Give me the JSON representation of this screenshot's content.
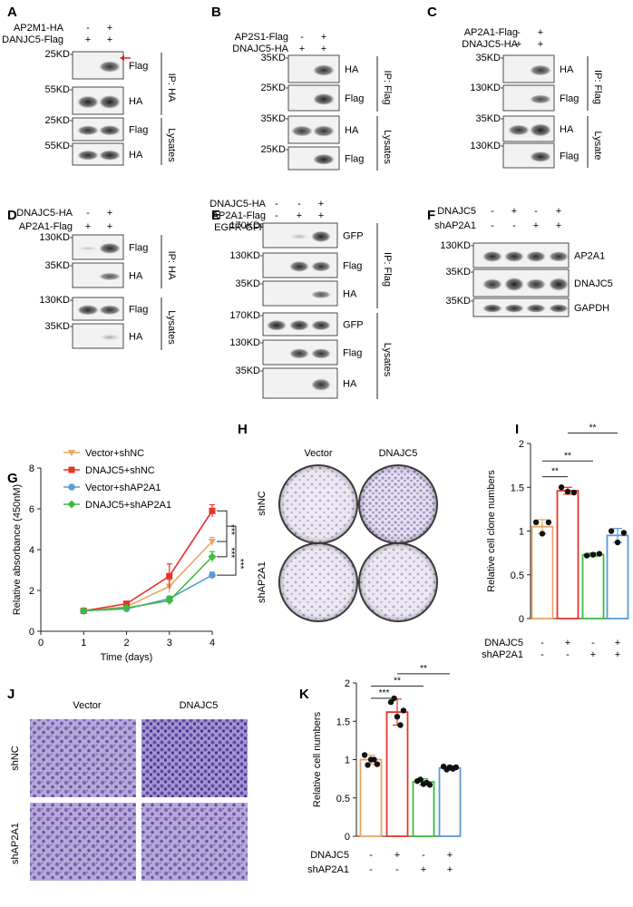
{
  "panels": {
    "A": {
      "label": "A",
      "conditions": [
        {
          "name": "AP2M1-HA",
          "vals": [
            "-",
            "+"
          ]
        },
        {
          "name": "DANJC5-Flag",
          "vals": [
            "+",
            "+"
          ]
        }
      ],
      "blots": [
        {
          "mw": "25KD",
          "protein": "Flag"
        },
        {
          "mw": "55KD",
          "protein": "HA"
        },
        {
          "mw": "25KD",
          "protein": "Flag"
        },
        {
          "mw": "55KD",
          "protein": "HA"
        }
      ],
      "groups": [
        "IP: HA",
        "Lysates"
      ]
    },
    "B": {
      "label": "B",
      "conditions": [
        {
          "name": "AP2S1-Flag",
          "vals": [
            "-",
            "+"
          ]
        },
        {
          "name": "DNAJC5-HA",
          "vals": [
            "+",
            "+"
          ]
        }
      ],
      "blots": [
        {
          "mw": "35KD",
          "protein": "HA"
        },
        {
          "mw": "25KD",
          "protein": "Flag"
        },
        {
          "mw": "35KD",
          "protein": "HA"
        },
        {
          "mw": "25KD",
          "protein": "Flag"
        }
      ],
      "groups": [
        "IP: Flag",
        "Lysates"
      ]
    },
    "C": {
      "label": "C",
      "conditions": [
        {
          "name": "AP2A1-Flag",
          "vals": [
            "-",
            "+"
          ]
        },
        {
          "name": "DNAJC5-HA",
          "vals": [
            "+",
            "+"
          ]
        }
      ],
      "blots": [
        {
          "mw": "35KD",
          "protein": "HA"
        },
        {
          "mw": "130KD",
          "protein": "Flag"
        },
        {
          "mw": "35KD",
          "protein": "HA"
        },
        {
          "mw": "130KD",
          "protein": "Flag"
        }
      ],
      "groups": [
        "IP: Flag",
        "Lysate"
      ]
    },
    "D": {
      "label": "D",
      "conditions": [
        {
          "name": "DNAJC5-HA",
          "vals": [
            "-",
            "+"
          ]
        },
        {
          "name": "AP2A1-Flag",
          "vals": [
            "+",
            "+"
          ]
        }
      ],
      "blots": [
        {
          "mw": "130KD",
          "protein": "Flag"
        },
        {
          "mw": "35KD",
          "protein": "HA"
        },
        {
          "mw": "130KD",
          "protein": "Flag"
        },
        {
          "mw": "35KD",
          "protein": "HA"
        }
      ],
      "groups": [
        "IP: HA",
        "Lysates"
      ]
    },
    "E": {
      "label": "E",
      "conditions": [
        {
          "name": "DNAJC5-HA",
          "vals": [
            "-",
            "-",
            "+"
          ]
        },
        {
          "name": "AP2A1-Flag",
          "vals": [
            "-",
            "+",
            "+"
          ]
        },
        {
          "name": "EGFR-GFP",
          "vals": [
            "+",
            "+",
            "+"
          ]
        }
      ],
      "blots": [
        {
          "mw": "170KD",
          "protein": "GFP"
        },
        {
          "mw": "130KD",
          "protein": "Flag"
        },
        {
          "mw": "35KD",
          "protein": "HA"
        },
        {
          "mw": "170KD",
          "protein": "GFP"
        },
        {
          "mw": "130KD",
          "protein": "Flag"
        },
        {
          "mw": "35KD",
          "protein": "HA"
        }
      ],
      "groups": [
        "IP: Flag",
        "Lysates"
      ]
    },
    "F": {
      "label": "F",
      "conditions": [
        {
          "name": "DNAJC5",
          "vals": [
            "-",
            "+",
            "-",
            "+"
          ]
        },
        {
          "name": "shAP2A1",
          "vals": [
            "-",
            "-",
            "+",
            "+"
          ]
        }
      ],
      "blots": [
        {
          "mw": "130KD",
          "protein": "AP2A1"
        },
        {
          "mw": "35KD",
          "protein": "DNAJC5"
        },
        {
          "mw": "35KD",
          "protein": "GAPDH"
        }
      ]
    },
    "H": {
      "label": "H",
      "cols": [
        "Vector",
        "DNAJC5"
      ],
      "rows": [
        "shNC",
        "shAP2A1"
      ]
    },
    "J": {
      "label": "J",
      "cols": [
        "Vector",
        "DNAJC5"
      ],
      "rows": [
        "shNC",
        "shAP2A1"
      ]
    }
  },
  "colors": {
    "vector_shNC": "#e8a565",
    "dnajc5_shNC": "#e8342a",
    "vector_shAP2A1": "#5b9bd5",
    "dnajc5_shAP2A1": "#3dbb3d",
    "crystal_violet": "#7a5bb0"
  },
  "chart_data": [
    {
      "panel": "G",
      "type": "line",
      "xlabel": "Time (days)",
      "ylabel": "Relative absorbance (450nM)",
      "xlim": [
        0,
        4
      ],
      "ylim": [
        0,
        8
      ],
      "xticks": [
        "0",
        "1",
        "2",
        "3",
        "4"
      ],
      "yticks": [
        "0",
        "2",
        "4",
        "6",
        "8"
      ],
      "x": [
        1,
        2,
        3,
        4
      ],
      "legend_position": "top-left",
      "series": [
        {
          "name": "Vector+shNC",
          "values": [
            1.0,
            1.2,
            2.2,
            4.4
          ],
          "err": [
            0.05,
            0.1,
            0.3,
            0.2
          ]
        },
        {
          "name": "DNAJC5+shNC",
          "values": [
            1.0,
            1.35,
            2.7,
            5.9
          ],
          "err": [
            0.05,
            0.1,
            0.6,
            0.3
          ]
        },
        {
          "name": "Vector+shAP2A1",
          "values": [
            1.0,
            1.1,
            1.6,
            2.75
          ],
          "err": [
            0.05,
            0.08,
            0.12,
            0.15
          ]
        },
        {
          "name": "DNAJC5+shAP2A1",
          "values": [
            1.0,
            1.15,
            1.5,
            3.65
          ],
          "err": [
            0.05,
            0.08,
            0.2,
            0.25
          ]
        }
      ],
      "significance": [
        "***",
        "***",
        "***"
      ]
    },
    {
      "panel": "I",
      "type": "bar",
      "ylabel": "Relative cell clone numbers",
      "ylim": [
        0,
        2
      ],
      "yticks": [
        "0",
        "0.5",
        "1",
        "1.5",
        "2"
      ],
      "conditions": [
        {
          "name": "DNAJC5",
          "vals": [
            "-",
            "+",
            "-",
            "+"
          ]
        },
        {
          "name": "shAP2A1",
          "vals": [
            "-",
            "-",
            "+",
            "+"
          ]
        }
      ],
      "values": [
        1.05,
        1.46,
        0.73,
        0.95
      ],
      "err": [
        0.08,
        0.04,
        0.02,
        0.08
      ],
      "points": [
        [
          1.1,
          0.97,
          1.1
        ],
        [
          1.5,
          1.45,
          1.44
        ],
        [
          0.72,
          0.73,
          0.74
        ],
        [
          1.0,
          0.87,
          0.98
        ]
      ],
      "significance": [
        "**",
        "**",
        "**"
      ]
    },
    {
      "panel": "K",
      "type": "bar",
      "ylabel": "Relative cell numbers",
      "ylim": [
        0,
        2
      ],
      "yticks": [
        "0",
        "0.5",
        "1",
        "1.5",
        "2"
      ],
      "conditions": [
        {
          "name": "DNAJC5",
          "vals": [
            "-",
            "+",
            "-",
            "+"
          ]
        },
        {
          "name": "shAP2A1",
          "vals": [
            "-",
            "-",
            "+",
            "+"
          ]
        }
      ],
      "values": [
        1.0,
        1.62,
        0.71,
        0.89
      ],
      "err": [
        0.06,
        0.17,
        0.04,
        0.03
      ],
      "points": [
        [
          1.06,
          0.93,
          1.0,
          1.0,
          0.94
        ],
        [
          1.75,
          1.8,
          1.56,
          1.45,
          1.64
        ],
        [
          0.72,
          0.74,
          0.68,
          0.7,
          0.67
        ],
        [
          0.91,
          0.87,
          0.9,
          0.88,
          0.9
        ]
      ],
      "significance": [
        "***",
        "**",
        "**"
      ]
    }
  ]
}
